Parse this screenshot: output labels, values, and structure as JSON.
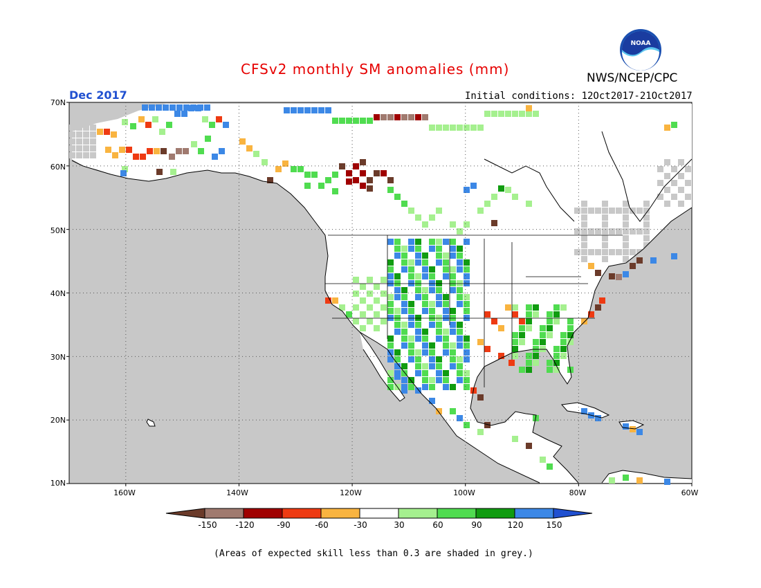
{
  "header": {
    "title": "CFSv2 monthly SM anomalies (mm)",
    "forecast_month": "Dec 2017",
    "initial_conditions": "Initial conditions: 12Oct2017-21Oct2017",
    "agency": "NWS/NCEP/CPC",
    "logo_text": "NOAA"
  },
  "map": {
    "region": "North America",
    "lat_range": [
      10,
      70
    ],
    "lon_range": [
      -170,
      -60
    ],
    "lat_ticks": [
      "70N",
      "60N",
      "50N",
      "40N",
      "30N",
      "20N",
      "10N"
    ],
    "lon_ticks": [
      "160W",
      "140W",
      "120W",
      "100W",
      "80W",
      "60W"
    ],
    "grid": "dotted",
    "colors": {
      "ocean": "#c8c8c8",
      "land_neutral": "#ffffff",
      "low_skill": "#c8c8c8"
    }
  },
  "colorbar": {
    "labels": [
      "-150",
      "-120",
      "-90",
      "-60",
      "-30",
      "30",
      "60",
      "90",
      "120",
      "150"
    ],
    "colors": [
      "#6b3b2a",
      "#a07a6f",
      "#a00000",
      "#ee3a12",
      "#f9b440",
      "#ffffff",
      "#a5f08f",
      "#50dc50",
      "#109c10",
      "#3c88e6",
      "#2050d0"
    ],
    "unit": "mm"
  },
  "footnote": "(Areas of expected skill less than 0.3 are shaded in grey.)"
}
